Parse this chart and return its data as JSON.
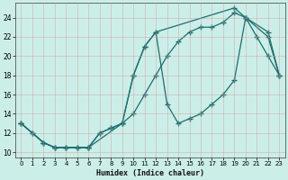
{
  "xlabel": "Humidex (Indice chaleur)",
  "bg_color": "#cceee8",
  "grid_color": "#b0b0b0",
  "line_color": "#1a6e6e",
  "xlim": [
    -0.5,
    23.5
  ],
  "ylim": [
    9.5,
    25.5
  ],
  "xticks": [
    0,
    1,
    2,
    3,
    4,
    5,
    6,
    7,
    8,
    9,
    10,
    11,
    12,
    13,
    14,
    15,
    16,
    17,
    18,
    19,
    20,
    21,
    22,
    23
  ],
  "yticks": [
    10,
    12,
    14,
    16,
    18,
    20,
    22,
    24
  ],
  "curve1_x": [
    0,
    1,
    2,
    3,
    4,
    5,
    6,
    7,
    8,
    9,
    10,
    11,
    12,
    13,
    14,
    15,
    16,
    17,
    18,
    19,
    20,
    21,
    22,
    23
  ],
  "curve1_y": [
    13,
    12,
    11,
    10.5,
    10.5,
    10.5,
    10.5,
    12,
    12.5,
    13,
    14,
    16,
    18,
    20,
    21.5,
    22.5,
    23,
    23,
    23.5,
    24.5,
    24,
    22,
    20,
    18
  ],
  "curve2_x": [
    0,
    1,
    2,
    3,
    4,
    5,
    6,
    7,
    8,
    9,
    10,
    11,
    12,
    13,
    14,
    15,
    16,
    17,
    18,
    19,
    20,
    22,
    23
  ],
  "curve2_y": [
    13,
    12,
    11,
    10.5,
    10.5,
    10.5,
    10.5,
    12,
    12.5,
    13,
    18,
    21,
    22.5,
    15,
    13,
    13.5,
    14,
    15,
    16,
    17.5,
    24,
    22,
    18
  ],
  "curve3_x": [
    0,
    2,
    3,
    4,
    5,
    6,
    9,
    10,
    11,
    12,
    19,
    20,
    22,
    23
  ],
  "curve3_y": [
    13,
    11,
    10.5,
    10.5,
    10.5,
    10.5,
    13,
    18,
    21,
    22.5,
    25,
    24,
    22.5,
    18
  ]
}
